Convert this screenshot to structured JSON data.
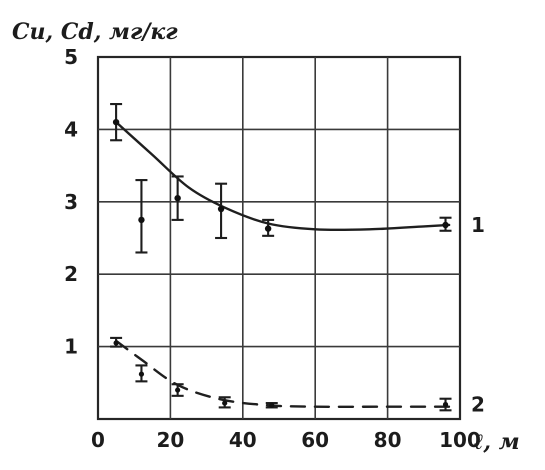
{
  "chart_data": {
    "type": "line",
    "ylabel": "Cu, Cd, мг/кг",
    "xlabel": "ℓ, м",
    "xlim": [
      0,
      100
    ],
    "ylim": [
      0,
      5
    ],
    "x_ticks": [
      "0",
      "20",
      "40",
      "60",
      "80",
      "100"
    ],
    "y_ticks": [
      "1",
      "2",
      "3",
      "4",
      "5"
    ],
    "grid": true,
    "series": [
      {
        "name": "1",
        "line_style": "solid",
        "fit_curve": [
          {
            "x": 5,
            "y": 4.1
          },
          {
            "x": 15,
            "y": 3.65
          },
          {
            "x": 25,
            "y": 3.2
          },
          {
            "x": 35,
            "y": 2.92
          },
          {
            "x": 47,
            "y": 2.7
          },
          {
            "x": 60,
            "y": 2.62
          },
          {
            "x": 75,
            "y": 2.62
          },
          {
            "x": 90,
            "y": 2.66
          },
          {
            "x": 97,
            "y": 2.68
          }
        ],
        "points": [
          {
            "x": 5,
            "y": 4.1,
            "low": 3.85,
            "high": 4.35
          },
          {
            "x": 12,
            "y": 2.75,
            "low": 2.3,
            "high": 3.3
          },
          {
            "x": 22,
            "y": 3.05,
            "low": 2.75,
            "high": 3.35
          },
          {
            "x": 34,
            "y": 2.9,
            "low": 2.5,
            "high": 3.25
          },
          {
            "x": 47,
            "y": 2.63,
            "low": 2.53,
            "high": 2.75
          },
          {
            "x": 96,
            "y": 2.68,
            "low": 2.6,
            "high": 2.78
          }
        ]
      },
      {
        "name": "2",
        "line_style": "dashed",
        "fit_curve": [
          {
            "x": 5,
            "y": 1.08
          },
          {
            "x": 12,
            "y": 0.82
          },
          {
            "x": 22,
            "y": 0.47
          },
          {
            "x": 34,
            "y": 0.27
          },
          {
            "x": 47,
            "y": 0.19
          },
          {
            "x": 60,
            "y": 0.17
          },
          {
            "x": 80,
            "y": 0.17
          },
          {
            "x": 97,
            "y": 0.17
          }
        ],
        "points": [
          {
            "x": 5,
            "y": 1.05,
            "low": 1.0,
            "high": 1.12
          },
          {
            "x": 12,
            "y": 0.62,
            "low": 0.52,
            "high": 0.74
          },
          {
            "x": 22,
            "y": 0.4,
            "low": 0.32,
            "high": 0.48
          },
          {
            "x": 35,
            "y": 0.22,
            "low": 0.16,
            "high": 0.3
          },
          {
            "x": 48,
            "y": 0.19,
            "low": 0.16,
            "high": 0.22
          },
          {
            "x": 96,
            "y": 0.2,
            "low": 0.12,
            "high": 0.28
          }
        ]
      }
    ]
  }
}
